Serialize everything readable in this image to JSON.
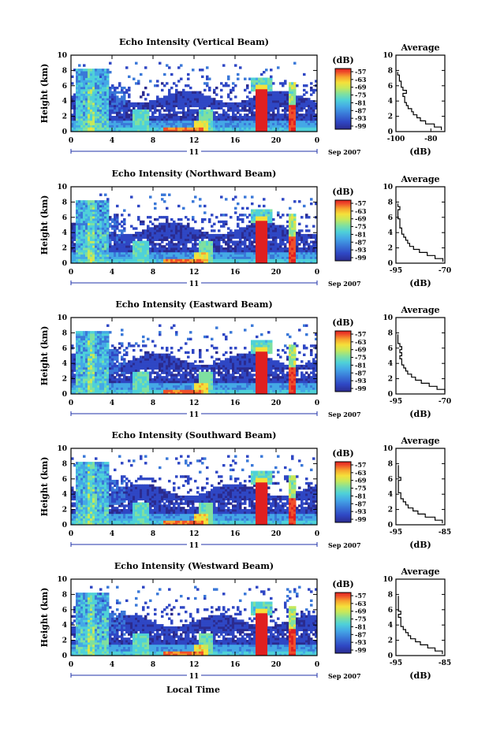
{
  "figure": {
    "bottom_xlabel": "Local Time",
    "ylabel": "Height (km)",
    "date_suffix": "Sep 2007",
    "day_label": "11",
    "colorbar_unit": "(dB)",
    "avg_title": "Average",
    "avg_xlabel": "(dB)"
  },
  "colors": {
    "scale": [
      "#2b2b8f",
      "#2f47c4",
      "#3a78d8",
      "#44a8e6",
      "#4fd1d8",
      "#7fe0a0",
      "#c7e85a",
      "#f5e03a",
      "#f7a52e",
      "#f0502a",
      "#e02020"
    ],
    "background": "#ffffff",
    "no_data": "#ffffff"
  },
  "chart_data": [
    {
      "type": "heatmap",
      "title": "Echo Intensity (Vertical Beam)",
      "xlabel": "",
      "ylabel": "Height (km)",
      "xlim": [
        0,
        24
      ],
      "ylim": [
        0,
        10
      ],
      "x_ticks": [
        "0",
        "4",
        "8",
        "12",
        "16",
        "20",
        "0"
      ],
      "y_ticks": [
        "0",
        "2",
        "4",
        "6",
        "8",
        "10"
      ],
      "colorbar": {
        "label": "(dB)",
        "ticks": [
          "-57",
          "-63",
          "-69",
          "-75",
          "-81",
          "-87",
          "-93",
          "-99"
        ]
      },
      "avg_profile": {
        "title": "Average",
        "xlabel": "(dB)",
        "x_ticks": [
          "-100",
          "-80"
        ],
        "xlim": [
          -100,
          -72
        ],
        "y_ticks": [
          "0",
          "2",
          "4",
          "6",
          "8",
          "10"
        ],
        "points": [
          [
            -74,
            0.2
          ],
          [
            -78,
            0.6
          ],
          [
            -83,
            1.0
          ],
          [
            -86,
            1.4
          ],
          [
            -88,
            1.8
          ],
          [
            -90,
            2.2
          ],
          [
            -91,
            2.6
          ],
          [
            -93,
            3.0
          ],
          [
            -94,
            3.4
          ],
          [
            -95,
            3.8
          ],
          [
            -95,
            4.2
          ],
          [
            -96,
            4.6
          ],
          [
            -94,
            5.0
          ],
          [
            -96,
            5.4
          ],
          [
            -97,
            5.8
          ],
          [
            -97,
            6.2
          ],
          [
            -98,
            6.6
          ],
          [
            -98,
            7.0
          ],
          [
            -99,
            7.4
          ],
          [
            -99,
            7.8
          ]
        ]
      }
    },
    {
      "type": "heatmap",
      "title": "Echo Intensity (Northward Beam)",
      "xlabel": "",
      "ylabel": "Height (km)",
      "xlim": [
        0,
        24
      ],
      "ylim": [
        0,
        10
      ],
      "x_ticks": [
        "0",
        "4",
        "8",
        "12",
        "16",
        "20",
        "0"
      ],
      "y_ticks": [
        "0",
        "2",
        "4",
        "6",
        "8",
        "10"
      ],
      "colorbar": {
        "label": "(dB)",
        "ticks": [
          "-57",
          "-63",
          "-69",
          "-75",
          "-81",
          "-87",
          "-93",
          "-99"
        ]
      },
      "avg_profile": {
        "title": "Average",
        "xlabel": "(dB)",
        "x_ticks": [
          "-95",
          "-70"
        ],
        "xlim": [
          -95,
          -70
        ],
        "y_ticks": [
          "0",
          "2",
          "4",
          "6",
          "8",
          "10"
        ],
        "points": [
          [
            -71,
            0.2
          ],
          [
            -75,
            0.6
          ],
          [
            -79,
            1.0
          ],
          [
            -83,
            1.4
          ],
          [
            -86,
            1.8
          ],
          [
            -88,
            2.2
          ],
          [
            -89,
            2.6
          ],
          [
            -90,
            3.0
          ],
          [
            -91,
            3.4
          ],
          [
            -92,
            3.8
          ],
          [
            -92,
            4.2
          ],
          [
            -93,
            4.6
          ],
          [
            -93,
            5.0
          ],
          [
            -93,
            5.4
          ],
          [
            -94,
            5.8
          ],
          [
            -94,
            6.2
          ],
          [
            -94,
            6.6
          ],
          [
            -93,
            7.0
          ],
          [
            -94,
            7.4
          ],
          [
            -94,
            7.8
          ]
        ]
      }
    },
    {
      "type": "heatmap",
      "title": "Echo Intensity (Eastward Beam)",
      "xlabel": "",
      "ylabel": "Height (km)",
      "xlim": [
        0,
        24
      ],
      "ylim": [
        0,
        10
      ],
      "x_ticks": [
        "0",
        "4",
        "8",
        "12",
        "16",
        "20",
        "0"
      ],
      "y_ticks": [
        "0",
        "2",
        "4",
        "6",
        "8",
        "10"
      ],
      "colorbar": {
        "label": "(dB)",
        "ticks": [
          "-57",
          "-63",
          "-69",
          "-75",
          "-81",
          "-87",
          "-93",
          "-99"
        ]
      },
      "avg_profile": {
        "title": "Average",
        "xlabel": "(dB)",
        "x_ticks": [
          "-95",
          "-70"
        ],
        "xlim": [
          -95,
          -70
        ],
        "y_ticks": [
          "0",
          "2",
          "4",
          "6",
          "8",
          "10"
        ],
        "points": [
          [
            -70,
            0.2
          ],
          [
            -74,
            0.6
          ],
          [
            -78,
            1.0
          ],
          [
            -82,
            1.4
          ],
          [
            -85,
            1.8
          ],
          [
            -87,
            2.2
          ],
          [
            -89,
            2.6
          ],
          [
            -90,
            3.0
          ],
          [
            -91,
            3.4
          ],
          [
            -92,
            3.8
          ],
          [
            -92,
            4.2
          ],
          [
            -93,
            4.6
          ],
          [
            -92,
            5.0
          ],
          [
            -93,
            5.4
          ],
          [
            -92,
            5.8
          ],
          [
            -93,
            6.2
          ],
          [
            -94,
            6.6
          ],
          [
            -94,
            7.0
          ],
          [
            -94,
            7.4
          ],
          [
            -94,
            7.8
          ]
        ]
      }
    },
    {
      "type": "heatmap",
      "title": "Echo Intensity (Southward Beam)",
      "xlabel": "",
      "ylabel": "Height (km)",
      "xlim": [
        0,
        24
      ],
      "ylim": [
        0,
        10
      ],
      "x_ticks": [
        "0",
        "4",
        "8",
        "12",
        "16",
        "20",
        "0"
      ],
      "y_ticks": [
        "0",
        "2",
        "4",
        "6",
        "8",
        "10"
      ],
      "colorbar": {
        "label": "(dB)",
        "ticks": [
          "-57",
          "-63",
          "-69",
          "-75",
          "-81",
          "-87",
          "-93",
          "-99"
        ]
      },
      "avg_profile": {
        "title": "Average",
        "xlabel": "(dB)",
        "x_ticks": [
          "-95",
          "-85"
        ],
        "xlim": [
          -95,
          -85
        ],
        "y_ticks": [
          "0",
          "2",
          "4",
          "6",
          "8",
          "10"
        ],
        "points": [
          [
            -85.5,
            0.2
          ],
          [
            -87,
            0.6
          ],
          [
            -89,
            1.0
          ],
          [
            -90.5,
            1.4
          ],
          [
            -91.5,
            1.8
          ],
          [
            -92.5,
            2.2
          ],
          [
            -93,
            2.6
          ],
          [
            -93.5,
            3.0
          ],
          [
            -94,
            3.4
          ],
          [
            -94,
            3.8
          ],
          [
            -94.5,
            4.2
          ],
          [
            -94.5,
            4.6
          ],
          [
            -94.5,
            5.0
          ],
          [
            -94.5,
            5.4
          ],
          [
            -94,
            5.8
          ],
          [
            -94.5,
            6.2
          ],
          [
            -94.5,
            6.6
          ],
          [
            -94.5,
            7.0
          ],
          [
            -94.5,
            7.4
          ],
          [
            -94.5,
            7.8
          ]
        ]
      }
    },
    {
      "type": "heatmap",
      "title": "Echo Intensity (Westward Beam)",
      "xlabel": "Local Time",
      "ylabel": "Height (km)",
      "xlim": [
        0,
        24
      ],
      "ylim": [
        0,
        10
      ],
      "x_ticks": [
        "0",
        "4",
        "8",
        "12",
        "16",
        "20",
        "0"
      ],
      "y_ticks": [
        "0",
        "2",
        "4",
        "6",
        "8",
        "10"
      ],
      "colorbar": {
        "label": "(dB)",
        "ticks": [
          "-57",
          "-63",
          "-69",
          "-75",
          "-81",
          "-87",
          "-93",
          "-99"
        ]
      },
      "avg_profile": {
        "title": "Average",
        "xlabel": "(dB)",
        "x_ticks": [
          "-95",
          "-85"
        ],
        "xlim": [
          -95,
          -85
        ],
        "y_ticks": [
          "0",
          "2",
          "4",
          "6",
          "8",
          "10"
        ],
        "points": [
          [
            -85.5,
            0.2
          ],
          [
            -87,
            0.6
          ],
          [
            -88.5,
            1.0
          ],
          [
            -90,
            1.4
          ],
          [
            -91,
            1.8
          ],
          [
            -92,
            2.2
          ],
          [
            -92.5,
            2.6
          ],
          [
            -93,
            3.0
          ],
          [
            -93.5,
            3.4
          ],
          [
            -94,
            3.8
          ],
          [
            -94,
            4.2
          ],
          [
            -94,
            4.6
          ],
          [
            -94.5,
            5.0
          ],
          [
            -94,
            5.4
          ],
          [
            -94.5,
            5.8
          ],
          [
            -94.5,
            6.2
          ],
          [
            -94.5,
            6.6
          ],
          [
            -94.5,
            7.0
          ],
          [
            -94.5,
            7.4
          ],
          [
            -94.5,
            7.8
          ]
        ]
      }
    }
  ]
}
